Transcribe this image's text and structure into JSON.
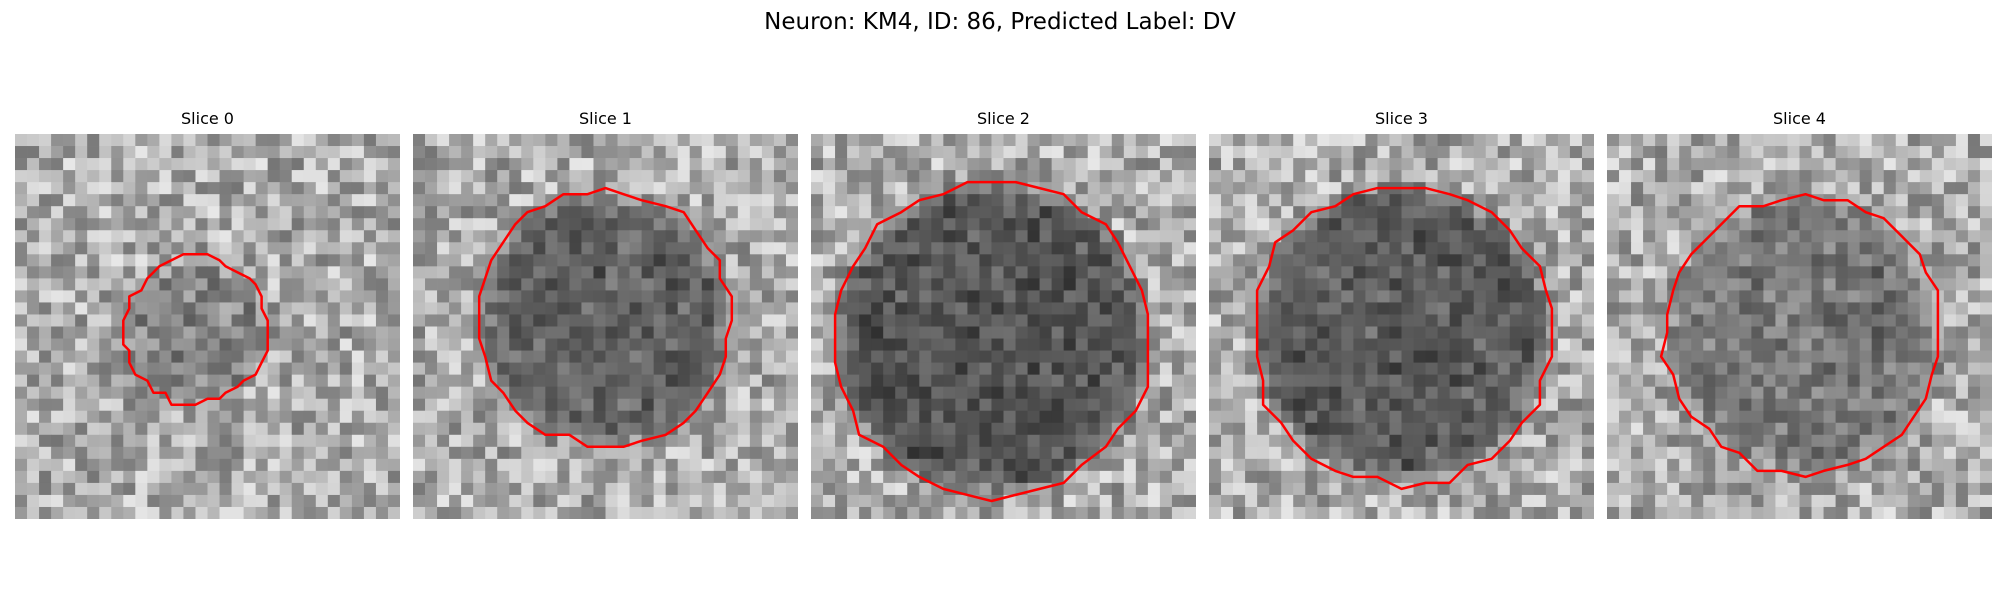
{
  "figure": {
    "title": "Neuron: KM4, ID: 86, Predicted Label: DV"
  },
  "colors": {
    "contour": "#ff0000",
    "background": "#ffffff"
  },
  "panels": [
    {
      "title": "Slice 0",
      "cell_radius_frac": 0.18,
      "cell_center": [
        0.47,
        0.51
      ],
      "darkness": 0.35
    },
    {
      "title": "Slice 1",
      "cell_radius_frac": 0.32,
      "cell_center": [
        0.5,
        0.48
      ],
      "darkness": 0.65
    },
    {
      "title": "Slice 2",
      "cell_radius_frac": 0.4,
      "cell_center": [
        0.47,
        0.53
      ],
      "darkness": 0.75
    },
    {
      "title": "Slice 3",
      "cell_radius_frac": 0.38,
      "cell_center": [
        0.5,
        0.52
      ],
      "darkness": 0.7
    },
    {
      "title": "Slice 4",
      "cell_radius_frac": 0.35,
      "cell_center": [
        0.51,
        0.52
      ],
      "darkness": 0.45
    }
  ]
}
